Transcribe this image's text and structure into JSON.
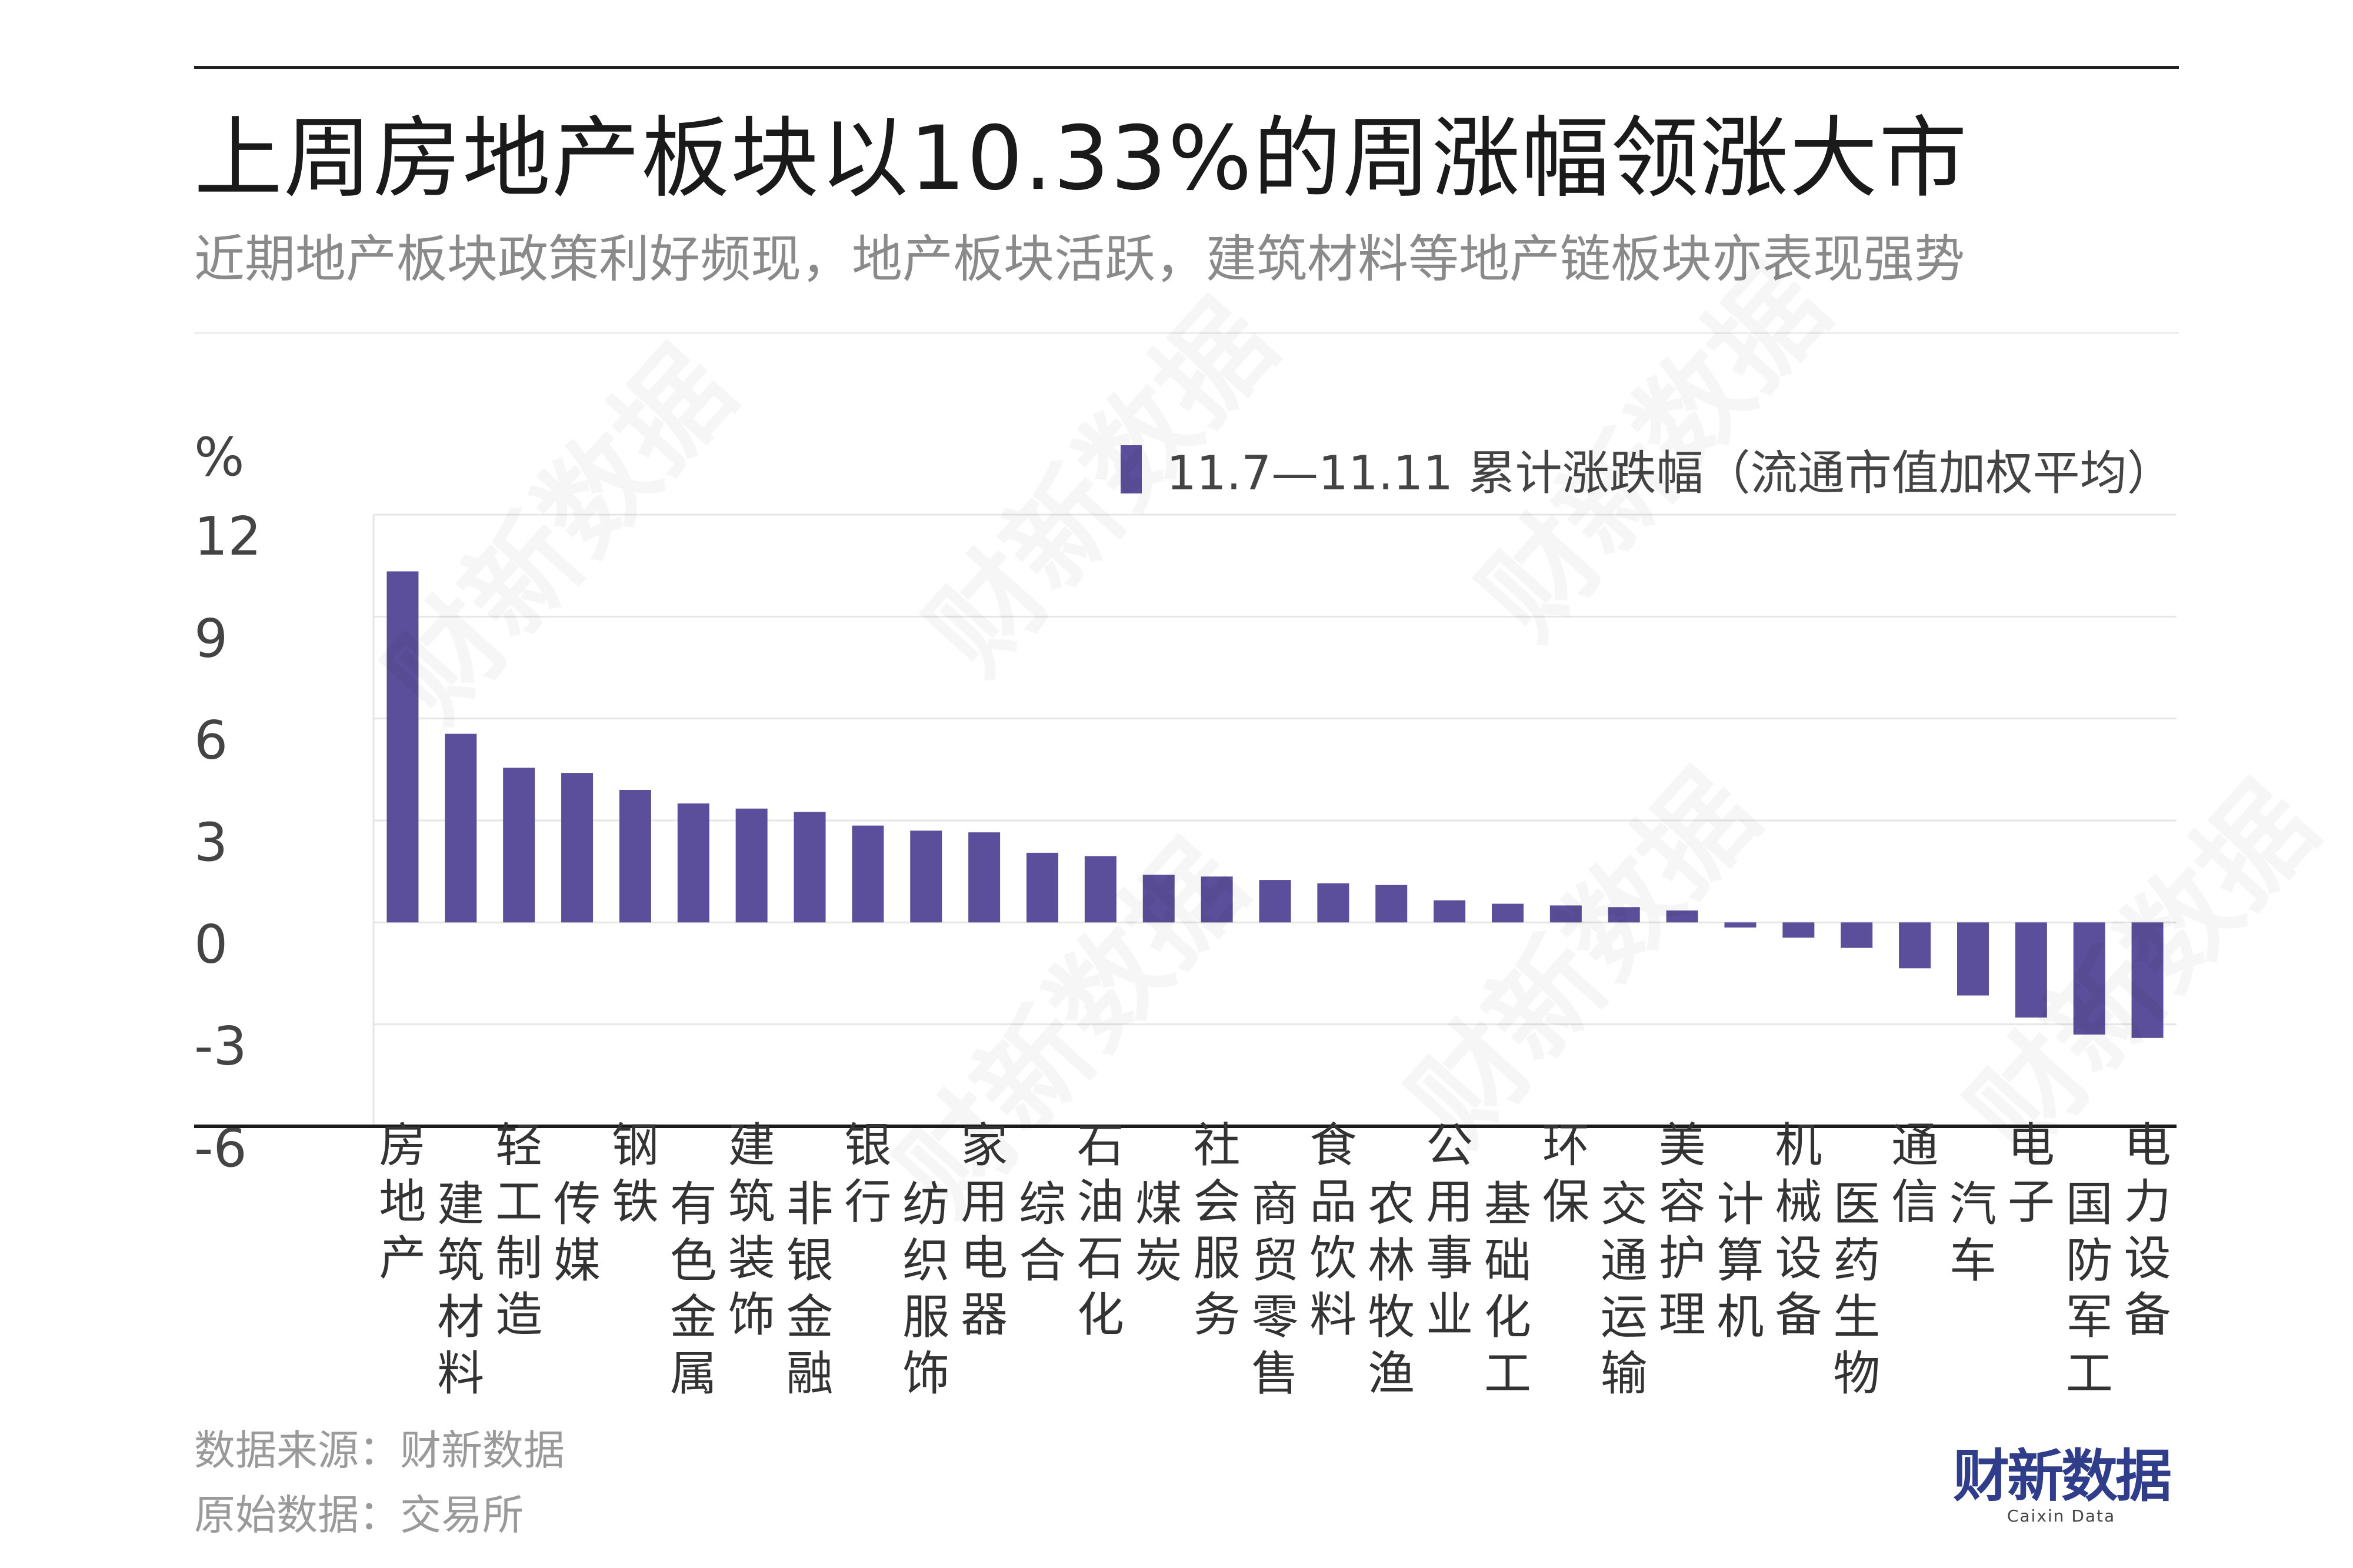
{
  "title": "上周房地产板块以10.33%的周涨幅领涨大市",
  "subtitle": "近期地产板块政策利好频现，地产板块活跃，建筑材料等地产链板块亦表现强势",
  "unit": "%",
  "legend_label": "11.7—11.11 累计涨跌幅（流通市值加权平均）",
  "bar_color": "#5b4e9a",
  "source_lines": [
    "数据来源：财新数据",
    "原始数据：交易所"
  ],
  "logo": {
    "main": "财新数据",
    "sub": "Caixin Data"
  },
  "watermark": "财新数据",
  "chart_data": {
    "type": "bar",
    "title": "上周房地产板块以10.33%的周涨幅领涨大市",
    "subtitle": "近期地产板块政策利好频现，地产板块活跃，建筑材料等地产链板块亦表现强势",
    "ylabel": "%",
    "ylim": [
      -6,
      12
    ],
    "yticks": [
      12,
      9,
      6,
      3,
      0,
      -3,
      -6
    ],
    "grid": true,
    "legend_position": "top-right",
    "categories": [
      "房地产",
      "建筑材料",
      "轻工制造",
      "传媒",
      "钢铁",
      "有色金属",
      "建筑装饰",
      "非银金融",
      "银行",
      "纺织服饰",
      "家用电器",
      "综合",
      "石油石化",
      "煤炭",
      "社会服务",
      "商贸零售",
      "食品饮料",
      "农林牧渔",
      "公用事业",
      "基础化工",
      "环保",
      "交通运输",
      "美容护理",
      "计算机",
      "机械设备",
      "医药生物",
      "通信",
      "汽车",
      "电子",
      "国防军工",
      "电力设备"
    ],
    "series": [
      {
        "name": "11.7—11.11 累计涨跌幅（流通市值加权平均）",
        "values": [
          10.33,
          5.55,
          4.55,
          4.4,
          3.9,
          3.5,
          3.35,
          3.25,
          2.85,
          2.7,
          2.65,
          2.05,
          1.95,
          1.4,
          1.35,
          1.25,
          1.15,
          1.1,
          0.65,
          0.55,
          0.5,
          0.45,
          0.35,
          -0.15,
          -0.45,
          -0.75,
          -1.35,
          -2.15,
          -2.8,
          -3.3,
          -3.4
        ]
      }
    ]
  }
}
